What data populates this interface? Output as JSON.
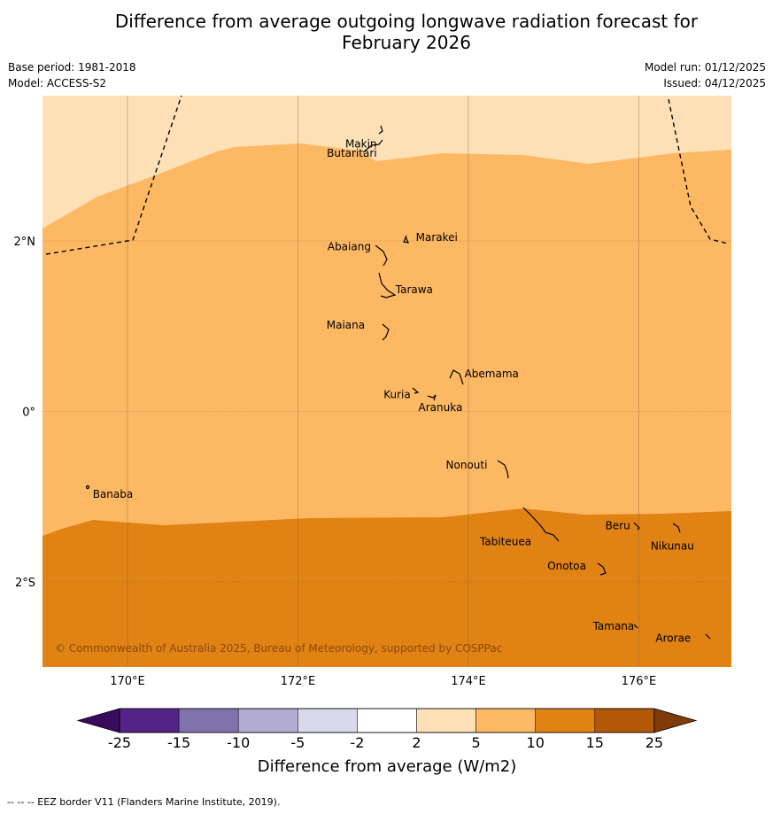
{
  "title_line1": "Difference from average outgoing longwave radiation forecast for",
  "title_line2": "February 2026",
  "base_period": "Base period: 1981-2018",
  "model": "Model: ACCESS-S2",
  "model_run": "Model run: 01/12/2025",
  "issued": "Issued: 04/12/2025",
  "copyright": "© Commonwealth of Australia 2025, Bureau of Meteorology, supported by COSPPac",
  "footnote": "--  --  -- EEZ border V11 (Flanders Marine Institute, 2019).",
  "map": {
    "lon_range": [
      169,
      177.1
    ],
    "lat_range": [
      -3,
      3.7
    ],
    "lon_ticks": [
      {
        "value": 170,
        "label": "170°E"
      },
      {
        "value": 172,
        "label": "172°E"
      },
      {
        "value": 174,
        "label": "174°E"
      },
      {
        "value": 176,
        "label": "176°E"
      }
    ],
    "lat_ticks": [
      {
        "value": 2,
        "label": "2°N"
      },
      {
        "value": 0,
        "label": "0°"
      },
      {
        "value": -2,
        "label": "2°S"
      }
    ],
    "islands": [
      {
        "name": "Makin",
        "lon": 172.95,
        "lat": 3.2
      },
      {
        "name": "Butaritari",
        "lon": 172.9,
        "lat": 3.05
      },
      {
        "name": "Marakei",
        "lon": 173.3,
        "lat": 2.0
      },
      {
        "name": "Abaiang",
        "lon": 172.97,
        "lat": 1.85
      },
      {
        "name": "Tarawa",
        "lon": 173.0,
        "lat": 1.45
      },
      {
        "name": "Maiana",
        "lon": 173.0,
        "lat": 0.95
      },
      {
        "name": "Abemama",
        "lon": 173.85,
        "lat": 0.4
      },
      {
        "name": "Kuria",
        "lon": 173.4,
        "lat": 0.22
      },
      {
        "name": "Aranuka",
        "lon": 173.6,
        "lat": 0.17
      },
      {
        "name": "Nonouti",
        "lon": 174.4,
        "lat": -0.67
      },
      {
        "name": "Banaba",
        "lon": 169.55,
        "lat": -0.87
      },
      {
        "name": "Tabiteuea",
        "lon": 174.8,
        "lat": -1.35
      },
      {
        "name": "Beru",
        "lon": 175.98,
        "lat": -1.33
      },
      {
        "name": "Nikunau",
        "lon": 176.45,
        "lat": -1.37
      },
      {
        "name": "Onotoa",
        "lon": 175.55,
        "lat": -1.8
      },
      {
        "name": "Tamana",
        "lon": 175.98,
        "lat": -2.5
      },
      {
        "name": "Arorae",
        "lon": 176.82,
        "lat": -2.65
      }
    ]
  },
  "colorbar": {
    "title": "Difference from average (W/m2)",
    "tick_labels": [
      "-25",
      "-15",
      "-10",
      "-5",
      "-2",
      "2",
      "5",
      "10",
      "15",
      "25"
    ],
    "colors": [
      "#3a0a5c",
      "#542388",
      "#8073ac",
      "#b2abd2",
      "#d8daeb",
      "#ffffff",
      "#fee0b6",
      "#fdb863",
      "#e08214",
      "#b35806",
      "#7f3b08"
    ]
  }
}
